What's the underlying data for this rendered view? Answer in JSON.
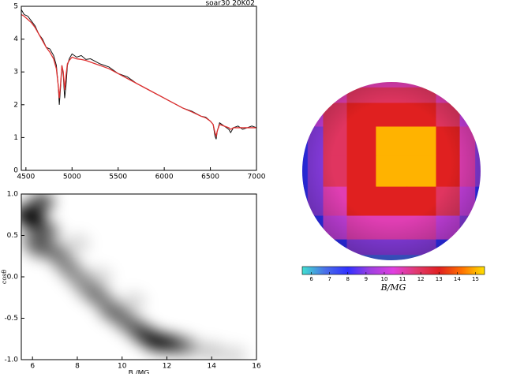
{
  "chart_data": [
    {
      "type": "line",
      "annotation": "soar30  20K02",
      "x": [
        4450,
        4480,
        4520,
        4560,
        4600,
        4640,
        4680,
        4720,
        4760,
        4800,
        4830,
        4850,
        4862,
        4875,
        4890,
        4905,
        4920,
        4935,
        4950,
        4970,
        5000,
        5050,
        5100,
        5150,
        5200,
        5300,
        5400,
        5500,
        5600,
        5700,
        5800,
        5900,
        6000,
        6100,
        6200,
        6300,
        6400,
        6450,
        6500,
        6530,
        6550,
        6563,
        6575,
        6600,
        6650,
        6700,
        6720,
        6750,
        6800,
        6850,
        6900,
        6950,
        7000
      ],
      "series": [
        {
          "color": "#111111",
          "values": [
            4.9,
            4.75,
            4.7,
            4.55,
            4.4,
            4.15,
            4.0,
            3.75,
            3.7,
            3.5,
            3.2,
            2.6,
            2.0,
            2.5,
            3.2,
            2.9,
            2.2,
            2.6,
            3.2,
            3.4,
            3.55,
            3.45,
            3.5,
            3.38,
            3.4,
            3.25,
            3.15,
            2.95,
            2.85,
            2.65,
            2.5,
            2.35,
            2.2,
            2.05,
            1.9,
            1.8,
            1.65,
            1.62,
            1.5,
            1.4,
            1.05,
            0.95,
            1.2,
            1.45,
            1.35,
            1.25,
            1.15,
            1.3,
            1.35,
            1.25,
            1.3,
            1.35,
            1.3
          ]
        },
        {
          "color": "#e03030",
          "values": [
            4.75,
            4.7,
            4.6,
            4.5,
            4.35,
            4.15,
            3.95,
            3.75,
            3.6,
            3.4,
            3.1,
            2.6,
            2.2,
            2.6,
            3.2,
            3.0,
            2.45,
            2.9,
            3.25,
            3.35,
            3.45,
            3.4,
            3.38,
            3.35,
            3.3,
            3.2,
            3.1,
            2.95,
            2.8,
            2.65,
            2.5,
            2.35,
            2.2,
            2.05,
            1.9,
            1.78,
            1.65,
            1.6,
            1.5,
            1.4,
            1.15,
            1.05,
            1.2,
            1.4,
            1.35,
            1.3,
            1.25,
            1.3,
            1.3,
            1.3,
            1.3,
            1.3,
            1.3
          ]
        }
      ],
      "xlim": [
        4450,
        7000
      ],
      "xticks": [
        4500,
        5000,
        5500,
        6000,
        6500,
        7000
      ],
      "ylim": [
        0,
        5
      ],
      "yticks": [
        0,
        1,
        2,
        3,
        4,
        5
      ]
    },
    {
      "type": "density",
      "xlabel": "B /MG",
      "ylabel": "cosθ",
      "color": "#000000",
      "x": [
        5.7,
        6.0,
        6.4,
        6.6,
        6.3,
        7.0,
        7.5,
        8.0,
        8.5,
        9.0,
        9.5,
        10.0,
        10.5,
        11.0,
        11.5,
        12.0,
        12.5,
        13.0,
        14.0,
        15.0,
        9.0,
        10.5,
        8.0,
        6.0
      ],
      "y": [
        0.75,
        0.7,
        0.9,
        0.55,
        0.35,
        0.3,
        0.15,
        0.0,
        -0.15,
        -0.25,
        -0.4,
        -0.5,
        -0.6,
        -0.7,
        -0.78,
        -0.8,
        -0.82,
        -0.85,
        -0.9,
        -0.95,
        0.0,
        -0.3,
        0.4,
        0.45
      ],
      "values": [
        0.9,
        1.0,
        0.7,
        0.6,
        0.5,
        0.5,
        0.45,
        0.4,
        0.4,
        0.45,
        0.5,
        0.45,
        0.5,
        0.7,
        0.85,
        0.75,
        0.45,
        0.3,
        0.2,
        0.15,
        0.15,
        0.15,
        0.15,
        0.4
      ],
      "xlim": [
        5.5,
        16
      ],
      "xticks": [
        6,
        8,
        10,
        12,
        14,
        16
      ],
      "ylim": [
        -1,
        1
      ],
      "yticks": [
        {
          "value": 1,
          "label": "1.0"
        },
        {
          "value": 0.5,
          "label": "0.5"
        },
        {
          "value": 0,
          "label": "0.0"
        },
        {
          "value": -0.5,
          "label": "-0.5"
        },
        {
          "value": -1,
          "label": "-1.0"
        }
      ]
    },
    {
      "type": "sphere-map",
      "clabel": "B/MG",
      "cells": [
        [
          10,
          10,
          11,
          11,
          11,
          11,
          11,
          10,
          10
        ],
        [
          9,
          10,
          11,
          12,
          12,
          12,
          11,
          10,
          9
        ],
        [
          8,
          10,
          12,
          13,
          13,
          13,
          12,
          10,
          9
        ],
        [
          8,
          9,
          12,
          13,
          15,
          15,
          13,
          11,
          9
        ],
        [
          8,
          9,
          12,
          13,
          15,
          15,
          13,
          11,
          9
        ],
        [
          8,
          9,
          11,
          13,
          13,
          13,
          12,
          10,
          8
        ],
        [
          8,
          8,
          10,
          11,
          11,
          11,
          10,
          9,
          8
        ],
        [
          7,
          8,
          8,
          9,
          9,
          9,
          8,
          8,
          7
        ],
        [
          6,
          6,
          7,
          7,
          7,
          7,
          7,
          7,
          6
        ]
      ],
      "colormap": [
        "#40e0d0",
        "#4a70e8",
        "#3030ff",
        "#a040e0",
        "#e040e0",
        "#e03a70",
        "#e02020",
        "#ff7000",
        "#ffe000"
      ],
      "clim": [
        5.5,
        15.5
      ],
      "cticks": [
        6,
        7,
        8,
        9,
        10,
        11,
        12,
        13,
        14,
        15
      ]
    }
  ]
}
